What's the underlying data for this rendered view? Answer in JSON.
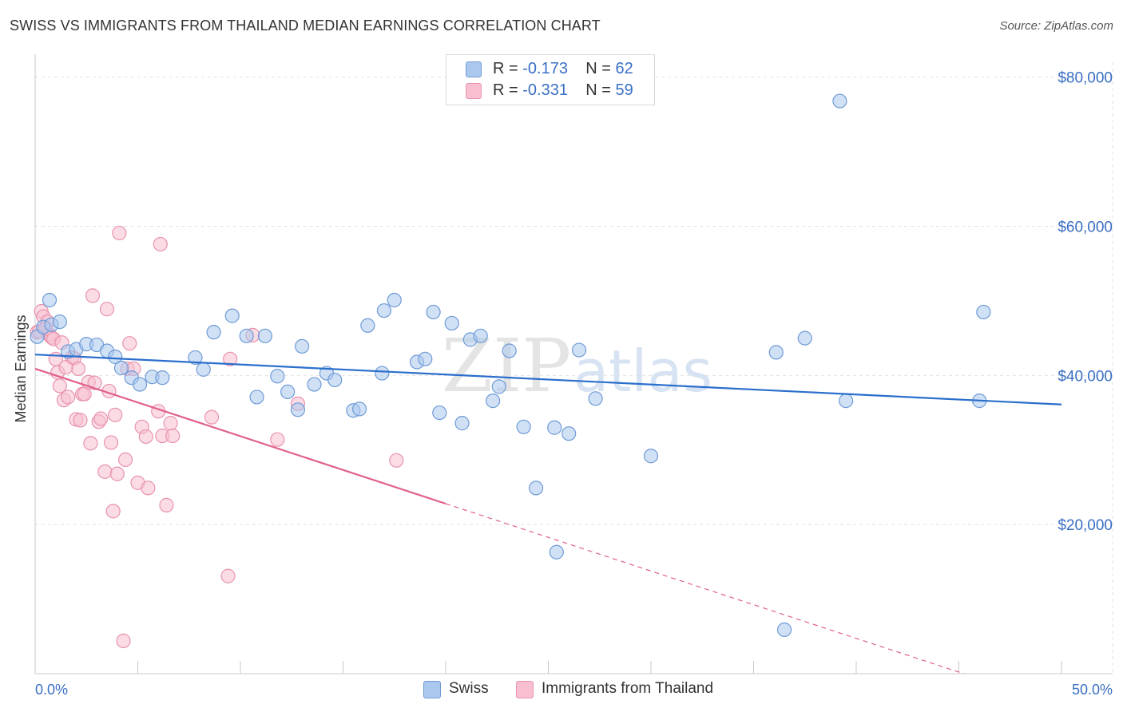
{
  "title": "SWISS VS IMMIGRANTS FROM THAILAND MEDIAN EARNINGS CORRELATION CHART",
  "source": "Source: ZipAtlas.com",
  "watermark": {
    "zip": "ZIP",
    "atlas": "atlas"
  },
  "legend": {
    "r_label": "R =",
    "n_label": "N =",
    "series": [
      {
        "name": "Swiss",
        "r": "-0.173",
        "n": "62"
      },
      {
        "name": "Immigrants from Thailand",
        "r": "-0.331",
        "n": "59"
      }
    ]
  },
  "colors": {
    "swiss_fill": "#aac8ee",
    "swiss_stroke": "#6f9bd6",
    "swiss_line": "#2b6fcc",
    "thai_fill": "#f7bfd0",
    "thai_stroke": "#e893ae",
    "thai_line": "#e0608c",
    "axis_label": "#3a6fc4",
    "grid": "#e2e2e2"
  },
  "chart_data": {
    "type": "scatter",
    "title": "SWISS VS IMMIGRANTS FROM THAILAND MEDIAN EARNINGS CORRELATION CHART",
    "xlabel": "",
    "ylabel": "Median Earnings",
    "xlim": [
      0,
      50
    ],
    "ylim": [
      0,
      82000
    ],
    "x_tick_labels": {
      "min": "0.0%",
      "max": "50.0%"
    },
    "y_ticks": [
      {
        "value": 20000,
        "label": "$20,000"
      },
      {
        "value": 40000,
        "label": "$40,000"
      },
      {
        "value": 60000,
        "label": "$60,000"
      },
      {
        "value": 80000,
        "label": "$80,000"
      }
    ],
    "series": [
      {
        "name": "Swiss",
        "points": [
          [
            0.1,
            45200
          ],
          [
            0.4,
            46500
          ],
          [
            0.7,
            50100
          ],
          [
            0.8,
            46800
          ],
          [
            1.2,
            47200
          ],
          [
            1.6,
            43200
          ],
          [
            2.0,
            43500
          ],
          [
            2.5,
            44200
          ],
          [
            3.0,
            44100
          ],
          [
            3.5,
            43300
          ],
          [
            3.9,
            42500
          ],
          [
            4.2,
            41000
          ],
          [
            4.7,
            39700
          ],
          [
            5.1,
            38800
          ],
          [
            5.7,
            39800
          ],
          [
            6.2,
            39700
          ],
          [
            7.8,
            42400
          ],
          [
            8.2,
            40800
          ],
          [
            8.7,
            45800
          ],
          [
            9.6,
            48000
          ],
          [
            10.3,
            45300
          ],
          [
            10.8,
            37100
          ],
          [
            11.2,
            45300
          ],
          [
            11.8,
            39900
          ],
          [
            12.3,
            37800
          ],
          [
            12.8,
            35400
          ],
          [
            13.0,
            43900
          ],
          [
            13.6,
            38800
          ],
          [
            14.2,
            40300
          ],
          [
            14.6,
            39400
          ],
          [
            15.5,
            35300
          ],
          [
            15.8,
            35500
          ],
          [
            16.2,
            46700
          ],
          [
            16.9,
            40300
          ],
          [
            17.0,
            48700
          ],
          [
            17.5,
            50100
          ],
          [
            18.6,
            41800
          ],
          [
            19.0,
            42200
          ],
          [
            19.4,
            48500
          ],
          [
            19.7,
            35000
          ],
          [
            20.3,
            47000
          ],
          [
            20.8,
            33600
          ],
          [
            21.2,
            44800
          ],
          [
            21.7,
            45300
          ],
          [
            22.3,
            36600
          ],
          [
            22.6,
            38500
          ],
          [
            23.1,
            43300
          ],
          [
            23.8,
            33100
          ],
          [
            24.4,
            24900
          ],
          [
            25.3,
            33000
          ],
          [
            25.4,
            16300
          ],
          [
            26.0,
            32200
          ],
          [
            26.5,
            43400
          ],
          [
            27.3,
            36900
          ],
          [
            30.0,
            29200
          ],
          [
            36.1,
            43100
          ],
          [
            36.5,
            5900
          ],
          [
            37.5,
            45000
          ],
          [
            39.2,
            76800
          ],
          [
            39.5,
            36600
          ],
          [
            46.0,
            36600
          ],
          [
            46.2,
            48500
          ]
        ],
        "trend": {
          "x": [
            0,
            50
          ],
          "y": [
            42800,
            36100
          ]
        }
      },
      {
        "name": "Immigrants from Thailand",
        "points": [
          [
            0.1,
            45800
          ],
          [
            0.3,
            48600
          ],
          [
            0.4,
            47900
          ],
          [
            0.6,
            47200
          ],
          [
            0.7,
            45400
          ],
          [
            0.8,
            45100
          ],
          [
            0.9,
            44900
          ],
          [
            1.0,
            42200
          ],
          [
            1.1,
            40400
          ],
          [
            1.2,
            38600
          ],
          [
            1.3,
            44400
          ],
          [
            1.4,
            36700
          ],
          [
            1.6,
            37100
          ],
          [
            1.8,
            42400
          ],
          [
            1.9,
            42300
          ],
          [
            2.0,
            34100
          ],
          [
            2.1,
            40900
          ],
          [
            2.2,
            34000
          ],
          [
            2.3,
            37500
          ],
          [
            2.4,
            37500
          ],
          [
            2.6,
            39100
          ],
          [
            2.7,
            30900
          ],
          [
            2.8,
            50700
          ],
          [
            2.9,
            39000
          ],
          [
            3.1,
            33800
          ],
          [
            3.2,
            34200
          ],
          [
            3.4,
            27100
          ],
          [
            3.5,
            48900
          ],
          [
            3.6,
            37900
          ],
          [
            3.7,
            31000
          ],
          [
            3.8,
            21800
          ],
          [
            3.9,
            34700
          ],
          [
            4.0,
            26800
          ],
          [
            4.1,
            59100
          ],
          [
            4.3,
            4400
          ],
          [
            4.4,
            28700
          ],
          [
            4.5,
            40900
          ],
          [
            4.6,
            44300
          ],
          [
            4.8,
            40900
          ],
          [
            5.0,
            25600
          ],
          [
            5.2,
            33100
          ],
          [
            5.4,
            31800
          ],
          [
            5.5,
            24900
          ],
          [
            6.0,
            35200
          ],
          [
            6.1,
            57600
          ],
          [
            6.2,
            31900
          ],
          [
            6.4,
            22600
          ],
          [
            6.6,
            33600
          ],
          [
            6.7,
            31900
          ],
          [
            8.6,
            34400
          ],
          [
            9.4,
            13100
          ],
          [
            9.5,
            42200
          ],
          [
            10.6,
            45400
          ],
          [
            11.8,
            31400
          ],
          [
            12.8,
            36200
          ],
          [
            17.6,
            28600
          ],
          [
            0.2,
            45900
          ],
          [
            0.5,
            46300
          ],
          [
            1.5,
            41100
          ]
        ],
        "trend": {
          "x": [
            0,
            20
          ],
          "y": [
            40900,
            22800
          ]
        },
        "trend_extension": {
          "x": [
            20,
            50
          ],
          "y": [
            22800,
            -4300
          ]
        }
      }
    ]
  }
}
